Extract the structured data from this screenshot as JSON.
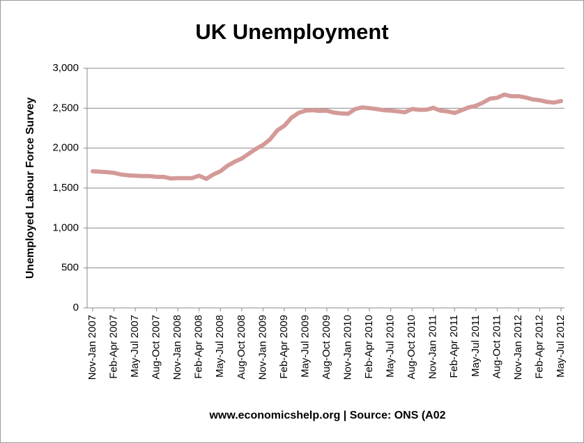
{
  "chart_data": {
    "type": "line",
    "title": "UK Unemployment",
    "ylabel": "Unemployed Labour Force Survey",
    "xlabel": "www.economicshelp.org | Source: ONS (A02",
    "categories": [
      "Nov-Jan 2007",
      null,
      null,
      "Feb-Apr 2007",
      null,
      null,
      "May-Jul 2007",
      null,
      null,
      "Aug-Oct 2007",
      null,
      null,
      "Nov-Jan 2008",
      null,
      null,
      "Feb-Apr 2008",
      null,
      null,
      "May-Jul 2008",
      null,
      null,
      "Aug-Oct 2008",
      null,
      null,
      "Nov-Jan 2009",
      null,
      null,
      "Feb-Apr 2009",
      null,
      null,
      "May-Jul 2009",
      null,
      null,
      "Aug-Oct 2009",
      null,
      null,
      "Nov-Jan 2010",
      null,
      null,
      "Feb-Apr 2010",
      null,
      null,
      "May-Jul 2010",
      null,
      null,
      "Aug-Oct 2010",
      null,
      null,
      "Nov-Jan 2011",
      null,
      null,
      "Feb-Apr 2011",
      null,
      null,
      "May-Jul 2011",
      null,
      null,
      "Aug-Oct 2011",
      null,
      null,
      "Nov-Jan 2012",
      null,
      null,
      "Feb-Apr 2012",
      null,
      null,
      "May-Jul 2012"
    ],
    "series": [
      {
        "name": "Unemployed",
        "color": "#d49a98",
        "values": [
          1710,
          1705,
          1700,
          1690,
          1670,
          1660,
          1655,
          1650,
          1650,
          1640,
          1640,
          1620,
          1625,
          1625,
          1625,
          1655,
          1615,
          1670,
          1710,
          1780,
          1830,
          1870,
          1930,
          1990,
          2040,
          2110,
          2220,
          2280,
          2380,
          2440,
          2470,
          2475,
          2465,
          2470,
          2445,
          2435,
          2430,
          2490,
          2510,
          2500,
          2490,
          2475,
          2470,
          2460,
          2450,
          2490,
          2480,
          2480,
          2505,
          2470,
          2460,
          2440,
          2475,
          2510,
          2530,
          2570,
          2620,
          2630,
          2670,
          2650,
          2650,
          2635,
          2610,
          2600,
          2580,
          2570,
          2590
        ]
      }
    ],
    "ylim": [
      0,
      3000
    ],
    "yticks": [
      0,
      500,
      {
        "value": 1000,
        "label": "1,000"
      },
      {
        "value": 1500,
        "label": "1,500"
      },
      {
        "value": 2000,
        "label": "2,000"
      },
      {
        "value": 2500,
        "label": "2,500"
      },
      {
        "value": 3000,
        "label": "3,000"
      }
    ],
    "grid": true
  }
}
